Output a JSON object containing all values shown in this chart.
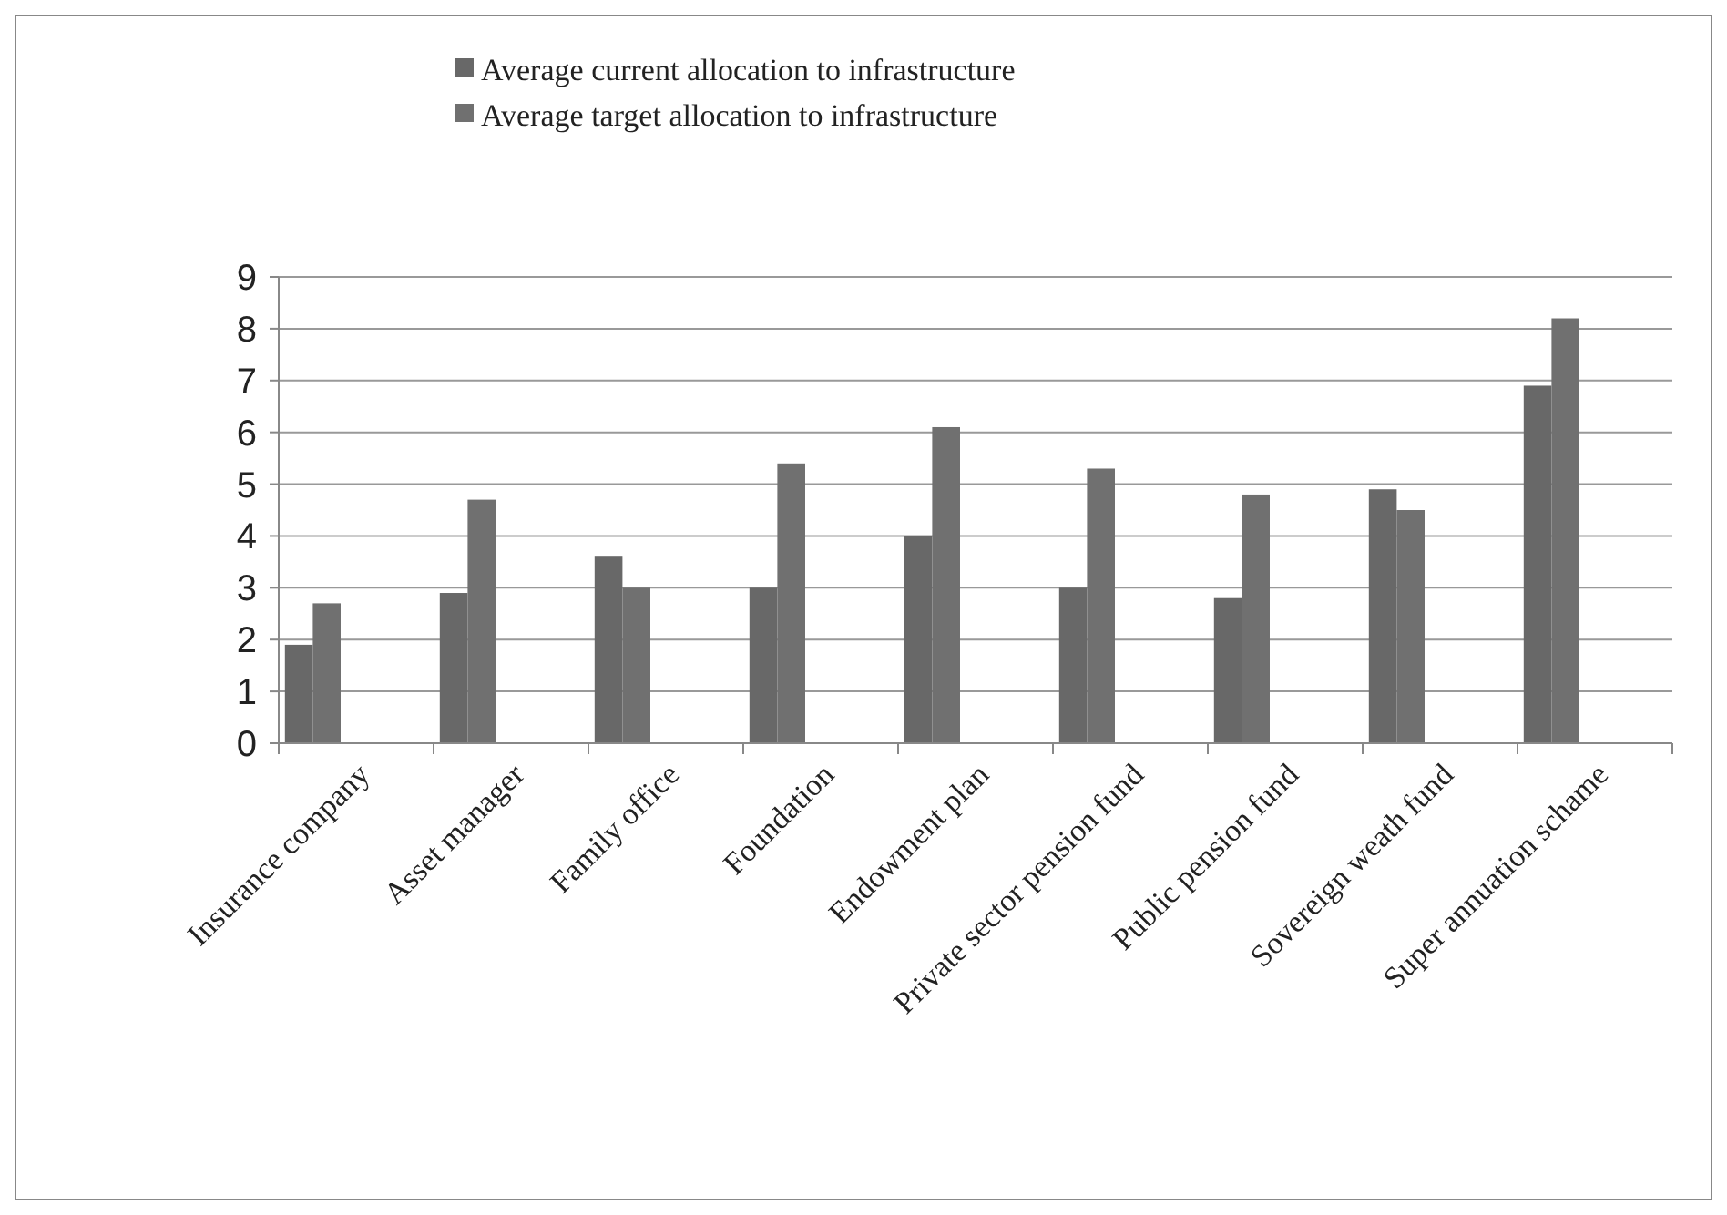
{
  "chart_data": {
    "type": "bar",
    "categories": [
      "Insurance company",
      "Asset manager",
      "Family office",
      "Foundation",
      "Endowment plan",
      "Private sector pension fund",
      "Public pension fund",
      "Sovereign weath fund",
      "Super annuation schame"
    ],
    "series": [
      {
        "name": "Average current allocation to infrastructure",
        "color": "#686868",
        "values": [
          1.9,
          2.9,
          3.6,
          3.0,
          4.0,
          3.0,
          2.8,
          4.9,
          6.9
        ]
      },
      {
        "name": "Average target allocation to infrastructure",
        "color": "#707070",
        "values": [
          2.7,
          4.7,
          3.0,
          5.4,
          6.1,
          5.3,
          4.8,
          4.5,
          8.2
        ]
      }
    ],
    "ylim": [
      0,
      9
    ],
    "yticks": [
      0,
      1,
      2,
      3,
      4,
      5,
      6,
      7,
      8,
      9
    ],
    "grid": "y",
    "legend": "top"
  }
}
